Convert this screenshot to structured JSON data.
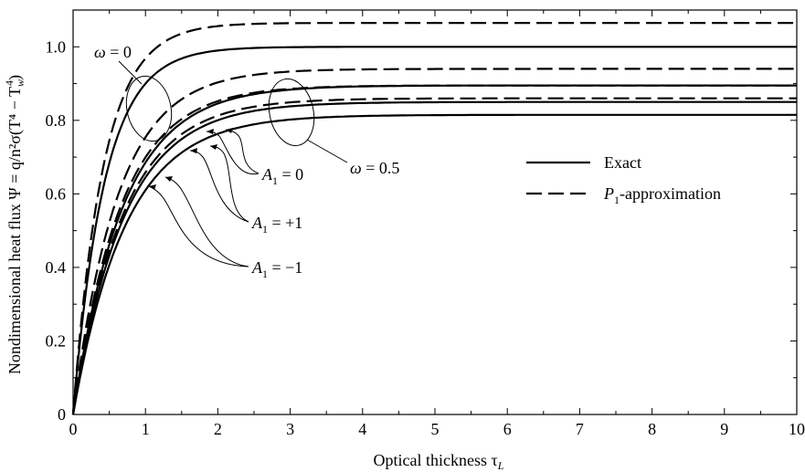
{
  "chart_data": {
    "type": "line",
    "xlabel_main": "Optical thickness τ",
    "xlabel_sub": "L",
    "ylabel": "Nondimensional heat flux Ψ = q/n²σ(T⁴ − T",
    "ylabel_sub": "w",
    "ylabel_sup": "4",
    "ylabel_close": ")",
    "xlim": [
      0,
      10
    ],
    "ylim": [
      0,
      1.1
    ],
    "x_ticks": [
      "0",
      "1",
      "2",
      "3",
      "4",
      "5",
      "6",
      "7",
      "8",
      "9",
      "10"
    ],
    "y_ticks": [
      "0",
      "0.2",
      "0.4",
      "0.6",
      "0.8",
      "1.0"
    ],
    "legend_position": "right",
    "legend": [
      {
        "label_prefix": "",
        "label_sub": "",
        "label_rest": "Exact",
        "style": "solid"
      },
      {
        "label_prefix": "P",
        "label_sub": "1",
        "label_rest": "-approximation",
        "style": "dashed"
      }
    ],
    "annotations": {
      "omega0": {
        "symbol": "ω",
        "rest": " = 0"
      },
      "omega05": {
        "symbol": "ω",
        "rest": " = 0.5"
      },
      "a0": {
        "prefix": "A",
        "sub": "1",
        "rest": " = 0"
      },
      "ap1": {
        "prefix": "A",
        "sub": "1",
        "rest": " = +1"
      },
      "am1": {
        "prefix": "A",
        "sub": "1",
        "rest": " = −1"
      }
    },
    "series": [
      {
        "id": "w0-exact",
        "style": "solid",
        "asymptote": 1.0,
        "k": 2.3
      },
      {
        "id": "w0-p1",
        "style": "dashed",
        "asymptote": 1.065,
        "k": 2.4
      },
      {
        "id": "w05-a0-exact",
        "style": "solid",
        "asymptote": 0.85,
        "k": 1.42
      },
      {
        "id": "w05-a0-p1",
        "style": "dashed",
        "asymptote": 0.895,
        "k": 1.52
      },
      {
        "id": "w05-ap1-exact",
        "style": "solid",
        "asymptote": 0.895,
        "k": 1.45
      },
      {
        "id": "w05-ap1-p1",
        "style": "dashed",
        "asymptote": 0.94,
        "k": 1.62
      },
      {
        "id": "w05-am1-exact",
        "style": "solid",
        "asymptote": 0.815,
        "k": 1.38
      },
      {
        "id": "w05-am1-p1",
        "style": "dashed",
        "asymptote": 0.86,
        "k": 1.45
      }
    ]
  }
}
